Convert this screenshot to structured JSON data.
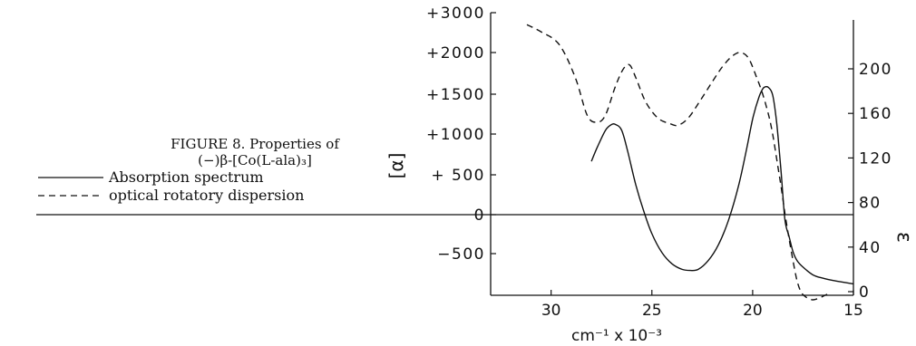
{
  "caption": {
    "line1": "FIGURE 8.  Properties of",
    "line2": "(−)β-[Co(L-ala)₃]"
  },
  "legend": [
    {
      "label": "Absorption spectrum",
      "style": "solid"
    },
    {
      "label": "optical rotatory dispersion",
      "style": "dashed"
    }
  ],
  "chart_data": {
    "type": "line",
    "title": "",
    "xlabel": "cm⁻¹ x 10⁻³",
    "ylabel_left": "[α]",
    "ylabel_right": "ε",
    "x_ticks": [
      "30",
      "25",
      "20",
      "15"
    ],
    "y_left_ticks": [
      "+3000",
      "+2000",
      "+1500",
      "+1000",
      "+ 500",
      "0",
      "−500"
    ],
    "y_right_ticks": [
      "200",
      "160",
      "120",
      "80",
      "40",
      "0"
    ],
    "xlim": [
      33,
      15
    ],
    "x_reversed": true,
    "ylim_left": [
      -870,
      3000
    ],
    "ylim_right": [
      0,
      240
    ],
    "zero_line": true,
    "grid": false,
    "series": [
      {
        "name": "Absorption spectrum",
        "axis": "right",
        "style": "solid",
        "color": "#111111",
        "x": [
          28,
          27.7,
          27.3,
          27,
          26.8,
          26.5,
          26.2,
          25.8,
          25.4,
          25,
          24.5,
          24,
          23.5,
          23.1,
          22.7,
          22.2,
          21.7,
          21.2,
          20.7,
          20.3,
          20,
          19.7,
          19.5,
          19.35,
          19.2,
          19,
          18.8,
          18.6,
          18.4,
          18.2,
          18,
          17.8,
          17.5,
          17,
          16.5,
          16,
          15
        ],
        "y": [
          117,
          130,
          145,
          150,
          150,
          145,
          126,
          96,
          72,
          52,
          35,
          25,
          20,
          19,
          20,
          28,
          42,
          64,
          95,
          128,
          155,
          174,
          182,
          184,
          183,
          176,
          150,
          110,
          65,
          50,
          36,
          28,
          22,
          15,
          12,
          10,
          7
        ]
      },
      {
        "name": "optical rotatory dispersion",
        "axis": "left",
        "style": "dashed",
        "color": "#111111",
        "x": [
          31.2,
          30.5,
          29.6,
          28.8,
          28.2,
          27.7,
          27.3,
          26.8,
          26.4,
          26.1,
          25.8,
          25.3,
          24.7,
          24.1,
          23.7,
          23.2,
          22.6,
          22,
          21.5,
          21,
          20.6,
          20.2,
          19.8,
          19.5,
          19.2,
          19,
          18.8,
          18.6,
          18.4,
          18.2,
          18,
          17.8,
          17.6,
          17.4,
          17.2,
          17,
          16.7,
          16.3
        ],
        "y": [
          2700,
          2520,
          2200,
          1700,
          1230,
          1150,
          1240,
          1600,
          1810,
          1850,
          1700,
          1400,
          1200,
          1130,
          1110,
          1200,
          1420,
          1650,
          1830,
          1960,
          2000,
          1930,
          1700,
          1500,
          1230,
          990,
          680,
          370,
          20,
          -300,
          -560,
          -740,
          -840,
          -880,
          -900,
          -910,
          -895,
          -860
        ]
      }
    ]
  }
}
